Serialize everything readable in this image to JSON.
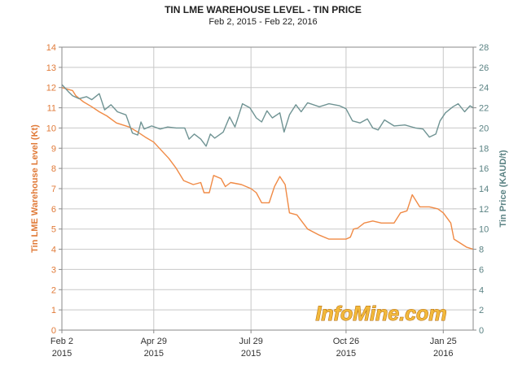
{
  "chart_data": {
    "type": "line",
    "title": "TIN LME WAREHOUSE LEVEL - TIN PRICE",
    "subtitle": "Feb 2, 2015 - Feb 22, 2016",
    "watermark": "InfoMine.com",
    "x_ticks": [
      {
        "line1": "Feb 2",
        "line2": "2015",
        "day": 0
      },
      {
        "line1": "Apr 29",
        "line2": "2015",
        "day": 86
      },
      {
        "line1": "Jul 29",
        "line2": "2015",
        "day": 177
      },
      {
        "line1": "Oct 26",
        "line2": "2015",
        "day": 266
      },
      {
        "line1": "Jan 25",
        "line2": "2016",
        "day": 357
      }
    ],
    "x_range": [
      "2015-02-02",
      "2016-02-22"
    ],
    "left_axis": {
      "label": "Tin LME Warehouse Level (Kt)",
      "color": "#e07a38",
      "ylim": [
        0,
        14
      ],
      "ticks": [
        "0",
        "1",
        "2",
        "3",
        "4",
        "5",
        "6",
        "7",
        "8",
        "9",
        "10",
        "11",
        "12",
        "13",
        "14"
      ]
    },
    "right_axis": {
      "label": "Tin Price (KAUD/t)",
      "color": "#5b8384",
      "ylim": [
        0,
        28
      ],
      "ticks": [
        "0",
        "2",
        "4",
        "6",
        "8",
        "10",
        "12",
        "14",
        "16",
        "18",
        "20",
        "22",
        "24",
        "26",
        "28"
      ]
    },
    "grid": true,
    "series": [
      {
        "axis": "left",
        "color": "#f08a45",
        "points": [
          [
            "2015-02-02",
            12.0
          ],
          [
            "2015-02-12",
            11.85
          ],
          [
            "2015-02-15",
            11.6
          ],
          [
            "2015-02-22",
            11.3
          ],
          [
            "2015-03-02",
            11.05
          ],
          [
            "2015-03-09",
            10.8
          ],
          [
            "2015-03-16",
            10.6
          ],
          [
            "2015-03-25",
            10.25
          ],
          [
            "2015-04-06",
            10.05
          ],
          [
            "2015-04-14",
            9.8
          ],
          [
            "2015-04-21",
            9.55
          ],
          [
            "2015-04-29",
            9.3
          ],
          [
            "2015-05-06",
            8.9
          ],
          [
            "2015-05-13",
            8.5
          ],
          [
            "2015-05-20",
            8.0
          ],
          [
            "2015-05-27",
            7.4
          ],
          [
            "2015-06-05",
            7.2
          ],
          [
            "2015-06-12",
            7.3
          ],
          [
            "2015-06-15",
            6.8
          ],
          [
            "2015-06-20",
            6.8
          ],
          [
            "2015-06-24",
            7.65
          ],
          [
            "2015-07-01",
            7.5
          ],
          [
            "2015-07-05",
            7.1
          ],
          [
            "2015-07-10",
            7.3
          ],
          [
            "2015-07-20",
            7.2
          ],
          [
            "2015-07-29",
            7.0
          ],
          [
            "2015-08-03",
            6.8
          ],
          [
            "2015-08-08",
            6.3
          ],
          [
            "2015-08-15",
            6.3
          ],
          [
            "2015-08-20",
            7.1
          ],
          [
            "2015-08-25",
            7.6
          ],
          [
            "2015-08-30",
            7.2
          ],
          [
            "2015-09-03",
            5.8
          ],
          [
            "2015-09-10",
            5.7
          ],
          [
            "2015-09-20",
            5.0
          ],
          [
            "2015-10-01",
            4.7
          ],
          [
            "2015-10-10",
            4.5
          ],
          [
            "2015-10-18",
            4.5
          ],
          [
            "2015-10-26",
            4.5
          ],
          [
            "2015-10-30",
            4.6
          ],
          [
            "2015-11-02",
            5.0
          ],
          [
            "2015-11-06",
            5.05
          ],
          [
            "2015-11-12",
            5.3
          ],
          [
            "2015-11-20",
            5.4
          ],
          [
            "2015-11-28",
            5.3
          ],
          [
            "2015-12-10",
            5.3
          ],
          [
            "2015-12-16",
            5.8
          ],
          [
            "2015-12-22",
            5.9
          ],
          [
            "2015-12-27",
            6.7
          ],
          [
            "2016-01-03",
            6.1
          ],
          [
            "2016-01-12",
            6.1
          ],
          [
            "2016-01-20",
            6.0
          ],
          [
            "2016-01-25",
            5.8
          ],
          [
            "2016-02-01",
            5.3
          ],
          [
            "2016-02-04",
            4.5
          ],
          [
            "2016-02-10",
            4.3
          ],
          [
            "2016-02-16",
            4.1
          ],
          [
            "2016-02-22",
            4.0
          ]
        ]
      },
      {
        "axis": "right",
        "color": "#6f9393",
        "points": [
          [
            "2015-02-02",
            24.3
          ],
          [
            "2015-02-08",
            23.6
          ],
          [
            "2015-02-12",
            23.2
          ],
          [
            "2015-02-18",
            22.9
          ],
          [
            "2015-02-25",
            23.1
          ],
          [
            "2015-03-02",
            22.8
          ],
          [
            "2015-03-09",
            23.4
          ],
          [
            "2015-03-14",
            21.8
          ],
          [
            "2015-03-20",
            22.3
          ],
          [
            "2015-03-26",
            21.6
          ],
          [
            "2015-04-03",
            21.3
          ],
          [
            "2015-04-09",
            19.5
          ],
          [
            "2015-04-14",
            19.3
          ],
          [
            "2015-04-17",
            20.6
          ],
          [
            "2015-04-20",
            19.9
          ],
          [
            "2015-04-27",
            20.2
          ],
          [
            "2015-05-05",
            19.9
          ],
          [
            "2015-05-12",
            20.1
          ],
          [
            "2015-05-20",
            20.0
          ],
          [
            "2015-05-28",
            20.0
          ],
          [
            "2015-06-01",
            18.9
          ],
          [
            "2015-06-06",
            19.4
          ],
          [
            "2015-06-12",
            18.9
          ],
          [
            "2015-06-17",
            18.2
          ],
          [
            "2015-06-21",
            19.4
          ],
          [
            "2015-06-25",
            19.0
          ],
          [
            "2015-07-03",
            19.6
          ],
          [
            "2015-07-09",
            21.1
          ],
          [
            "2015-07-14",
            20.1
          ],
          [
            "2015-07-21",
            22.4
          ],
          [
            "2015-07-28",
            22.0
          ],
          [
            "2015-08-03",
            21.0
          ],
          [
            "2015-08-08",
            20.6
          ],
          [
            "2015-08-13",
            21.7
          ],
          [
            "2015-08-18",
            21.0
          ],
          [
            "2015-08-25",
            21.5
          ],
          [
            "2015-08-29",
            19.6
          ],
          [
            "2015-09-03",
            21.3
          ],
          [
            "2015-09-09",
            22.3
          ],
          [
            "2015-09-14",
            21.6
          ],
          [
            "2015-09-20",
            22.5
          ],
          [
            "2015-10-01",
            22.1
          ],
          [
            "2015-10-10",
            22.4
          ],
          [
            "2015-10-20",
            22.2
          ],
          [
            "2015-10-26",
            21.9
          ],
          [
            "2015-11-01",
            20.7
          ],
          [
            "2015-11-08",
            20.5
          ],
          [
            "2015-11-15",
            20.9
          ],
          [
            "2015-11-20",
            20.0
          ],
          [
            "2015-11-25",
            19.8
          ],
          [
            "2015-12-01",
            20.8
          ],
          [
            "2015-12-10",
            20.2
          ],
          [
            "2015-12-20",
            20.3
          ],
          [
            "2015-12-30",
            20.0
          ],
          [
            "2016-01-06",
            19.9
          ],
          [
            "2016-01-12",
            19.1
          ],
          [
            "2016-01-18",
            19.4
          ],
          [
            "2016-01-22",
            20.7
          ],
          [
            "2016-01-27",
            21.5
          ],
          [
            "2016-02-03",
            22.1
          ],
          [
            "2016-02-08",
            22.4
          ],
          [
            "2016-02-14",
            21.6
          ],
          [
            "2016-02-19",
            22.2
          ],
          [
            "2016-02-22",
            22.0
          ]
        ]
      }
    ]
  }
}
